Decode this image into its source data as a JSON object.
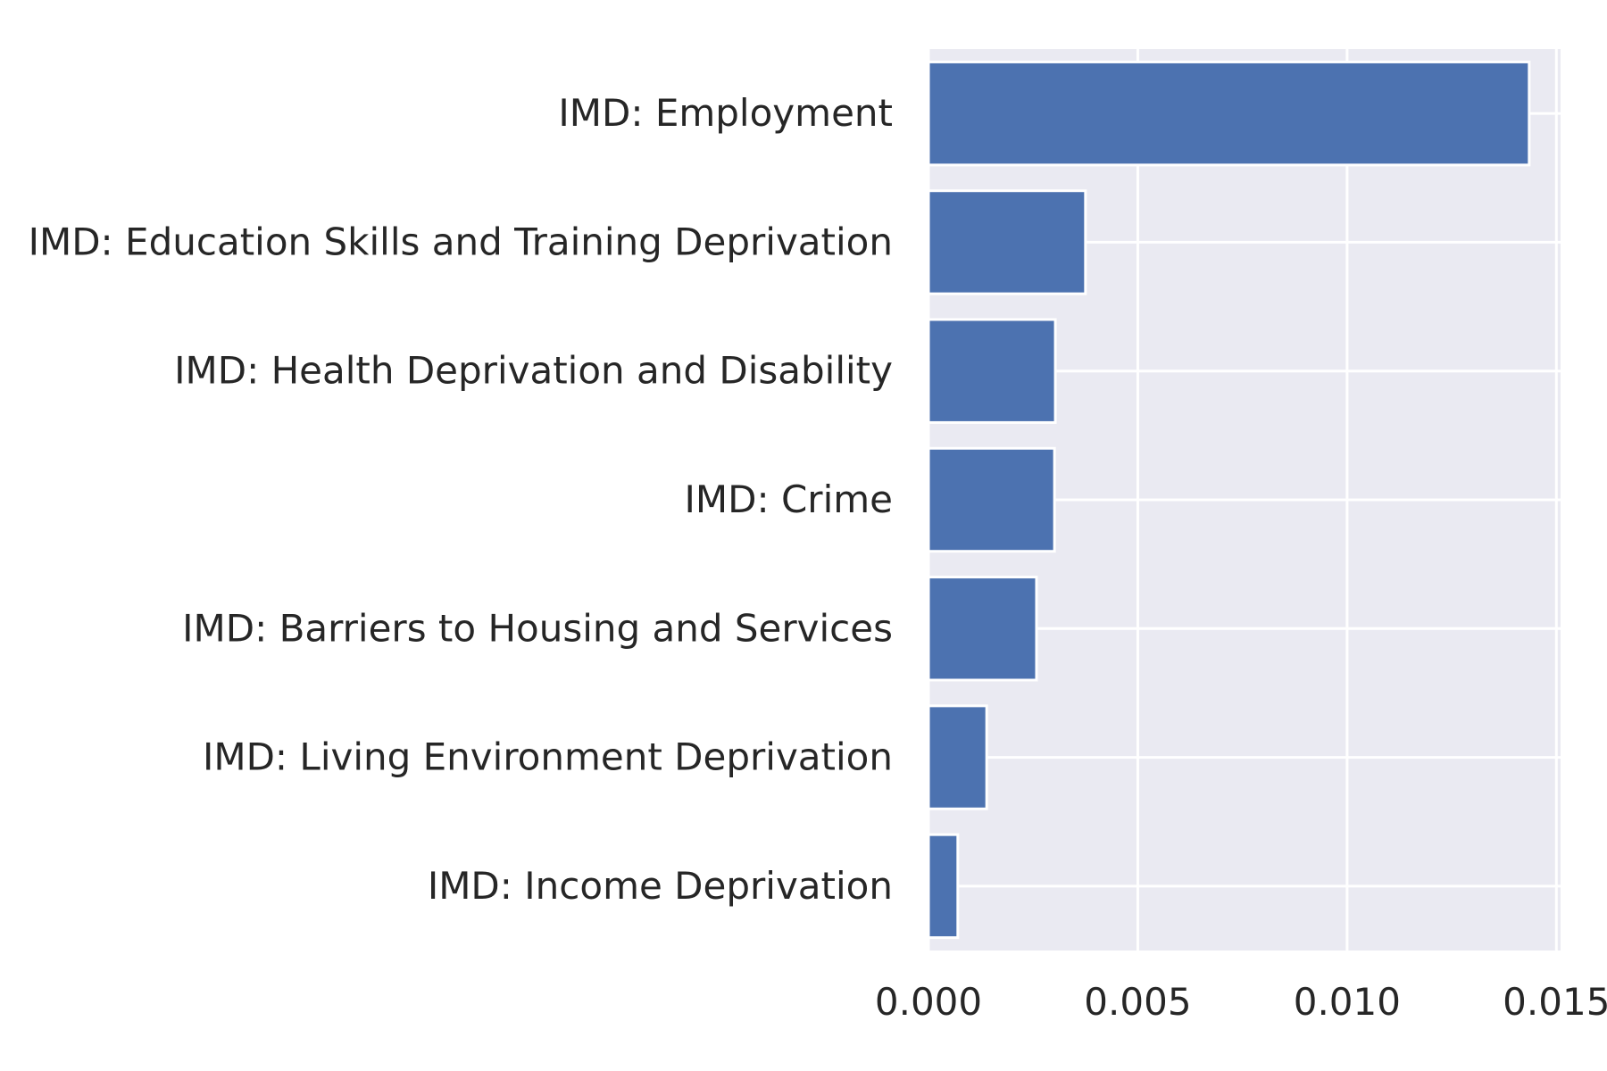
{
  "chart_data": {
    "type": "bar",
    "orientation": "horizontal",
    "title": "",
    "xlabel": "",
    "ylabel": "",
    "categories": [
      "IMD: Employment",
      "IMD: Education Skills and Training Deprivation",
      "IMD: Health Deprivation and Disability",
      "IMD: Crime",
      "IMD: Barriers to Housing and Services",
      "IMD: Living Environment Deprivation",
      "IMD: Income Deprivation"
    ],
    "values": [
      0.01435,
      0.00375,
      0.00303,
      0.00301,
      0.00258,
      0.00139,
      0.0007
    ],
    "xlim": [
      0,
      0.0151
    ],
    "xticks": [
      0.0,
      0.005,
      0.01,
      0.015
    ],
    "xtick_labels": [
      "0.000",
      "0.005",
      "0.010",
      "0.015"
    ],
    "grid": true,
    "legend": "none",
    "colors": {
      "bar": "#4C72B0",
      "background": "#EAEAF2",
      "grid": "#FFFFFF",
      "text": "#262626"
    }
  }
}
